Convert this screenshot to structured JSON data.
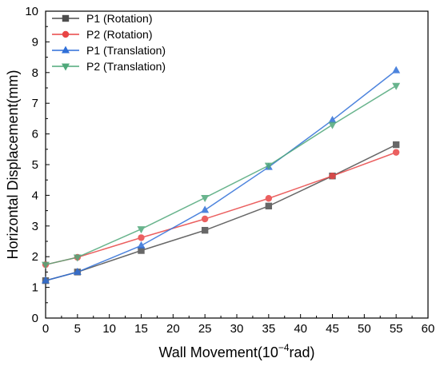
{
  "chart_data": {
    "type": "line",
    "title": "",
    "xlabel_main": "Wall Movement(10",
    "xlabel_sup": "−4",
    "xlabel_tail": "rad)",
    "ylabel": "Horizontal Displacement(mm)",
    "xlim": [
      0,
      60
    ],
    "ylim": [
      0,
      10
    ],
    "xticks": [
      "0",
      "5",
      "10",
      "15",
      "20",
      "25",
      "30",
      "35",
      "40",
      "45",
      "50",
      "55",
      "60"
    ],
    "yticks": [
      "0",
      "1",
      "2",
      "3",
      "4",
      "5",
      "6",
      "7",
      "8",
      "9",
      "10"
    ],
    "grid": false,
    "legend_position": "top-left",
    "x": [
      0,
      5,
      15,
      25,
      35,
      45,
      55
    ],
    "series": [
      {
        "name": "P1 (Rotation)",
        "color": "#4d4d4d",
        "marker": "square",
        "values": [
          1.22,
          1.5,
          2.2,
          2.86,
          3.65,
          4.63,
          5.65
        ]
      },
      {
        "name": "P2 (Rotation)",
        "color": "#e84545",
        "marker": "circle",
        "values": [
          1.74,
          1.98,
          2.62,
          3.23,
          3.9,
          4.63,
          5.4
        ]
      },
      {
        "name": "P1 (Translation)",
        "color": "#2f6fd8",
        "marker": "triangle-up",
        "values": [
          1.22,
          1.5,
          2.36,
          3.52,
          4.92,
          6.45,
          8.07
        ]
      },
      {
        "name": "P2 (Translation)",
        "color": "#4fa87a",
        "marker": "triangle-down",
        "values": [
          1.74,
          1.98,
          2.9,
          3.92,
          4.97,
          6.3,
          7.57
        ]
      }
    ]
  }
}
